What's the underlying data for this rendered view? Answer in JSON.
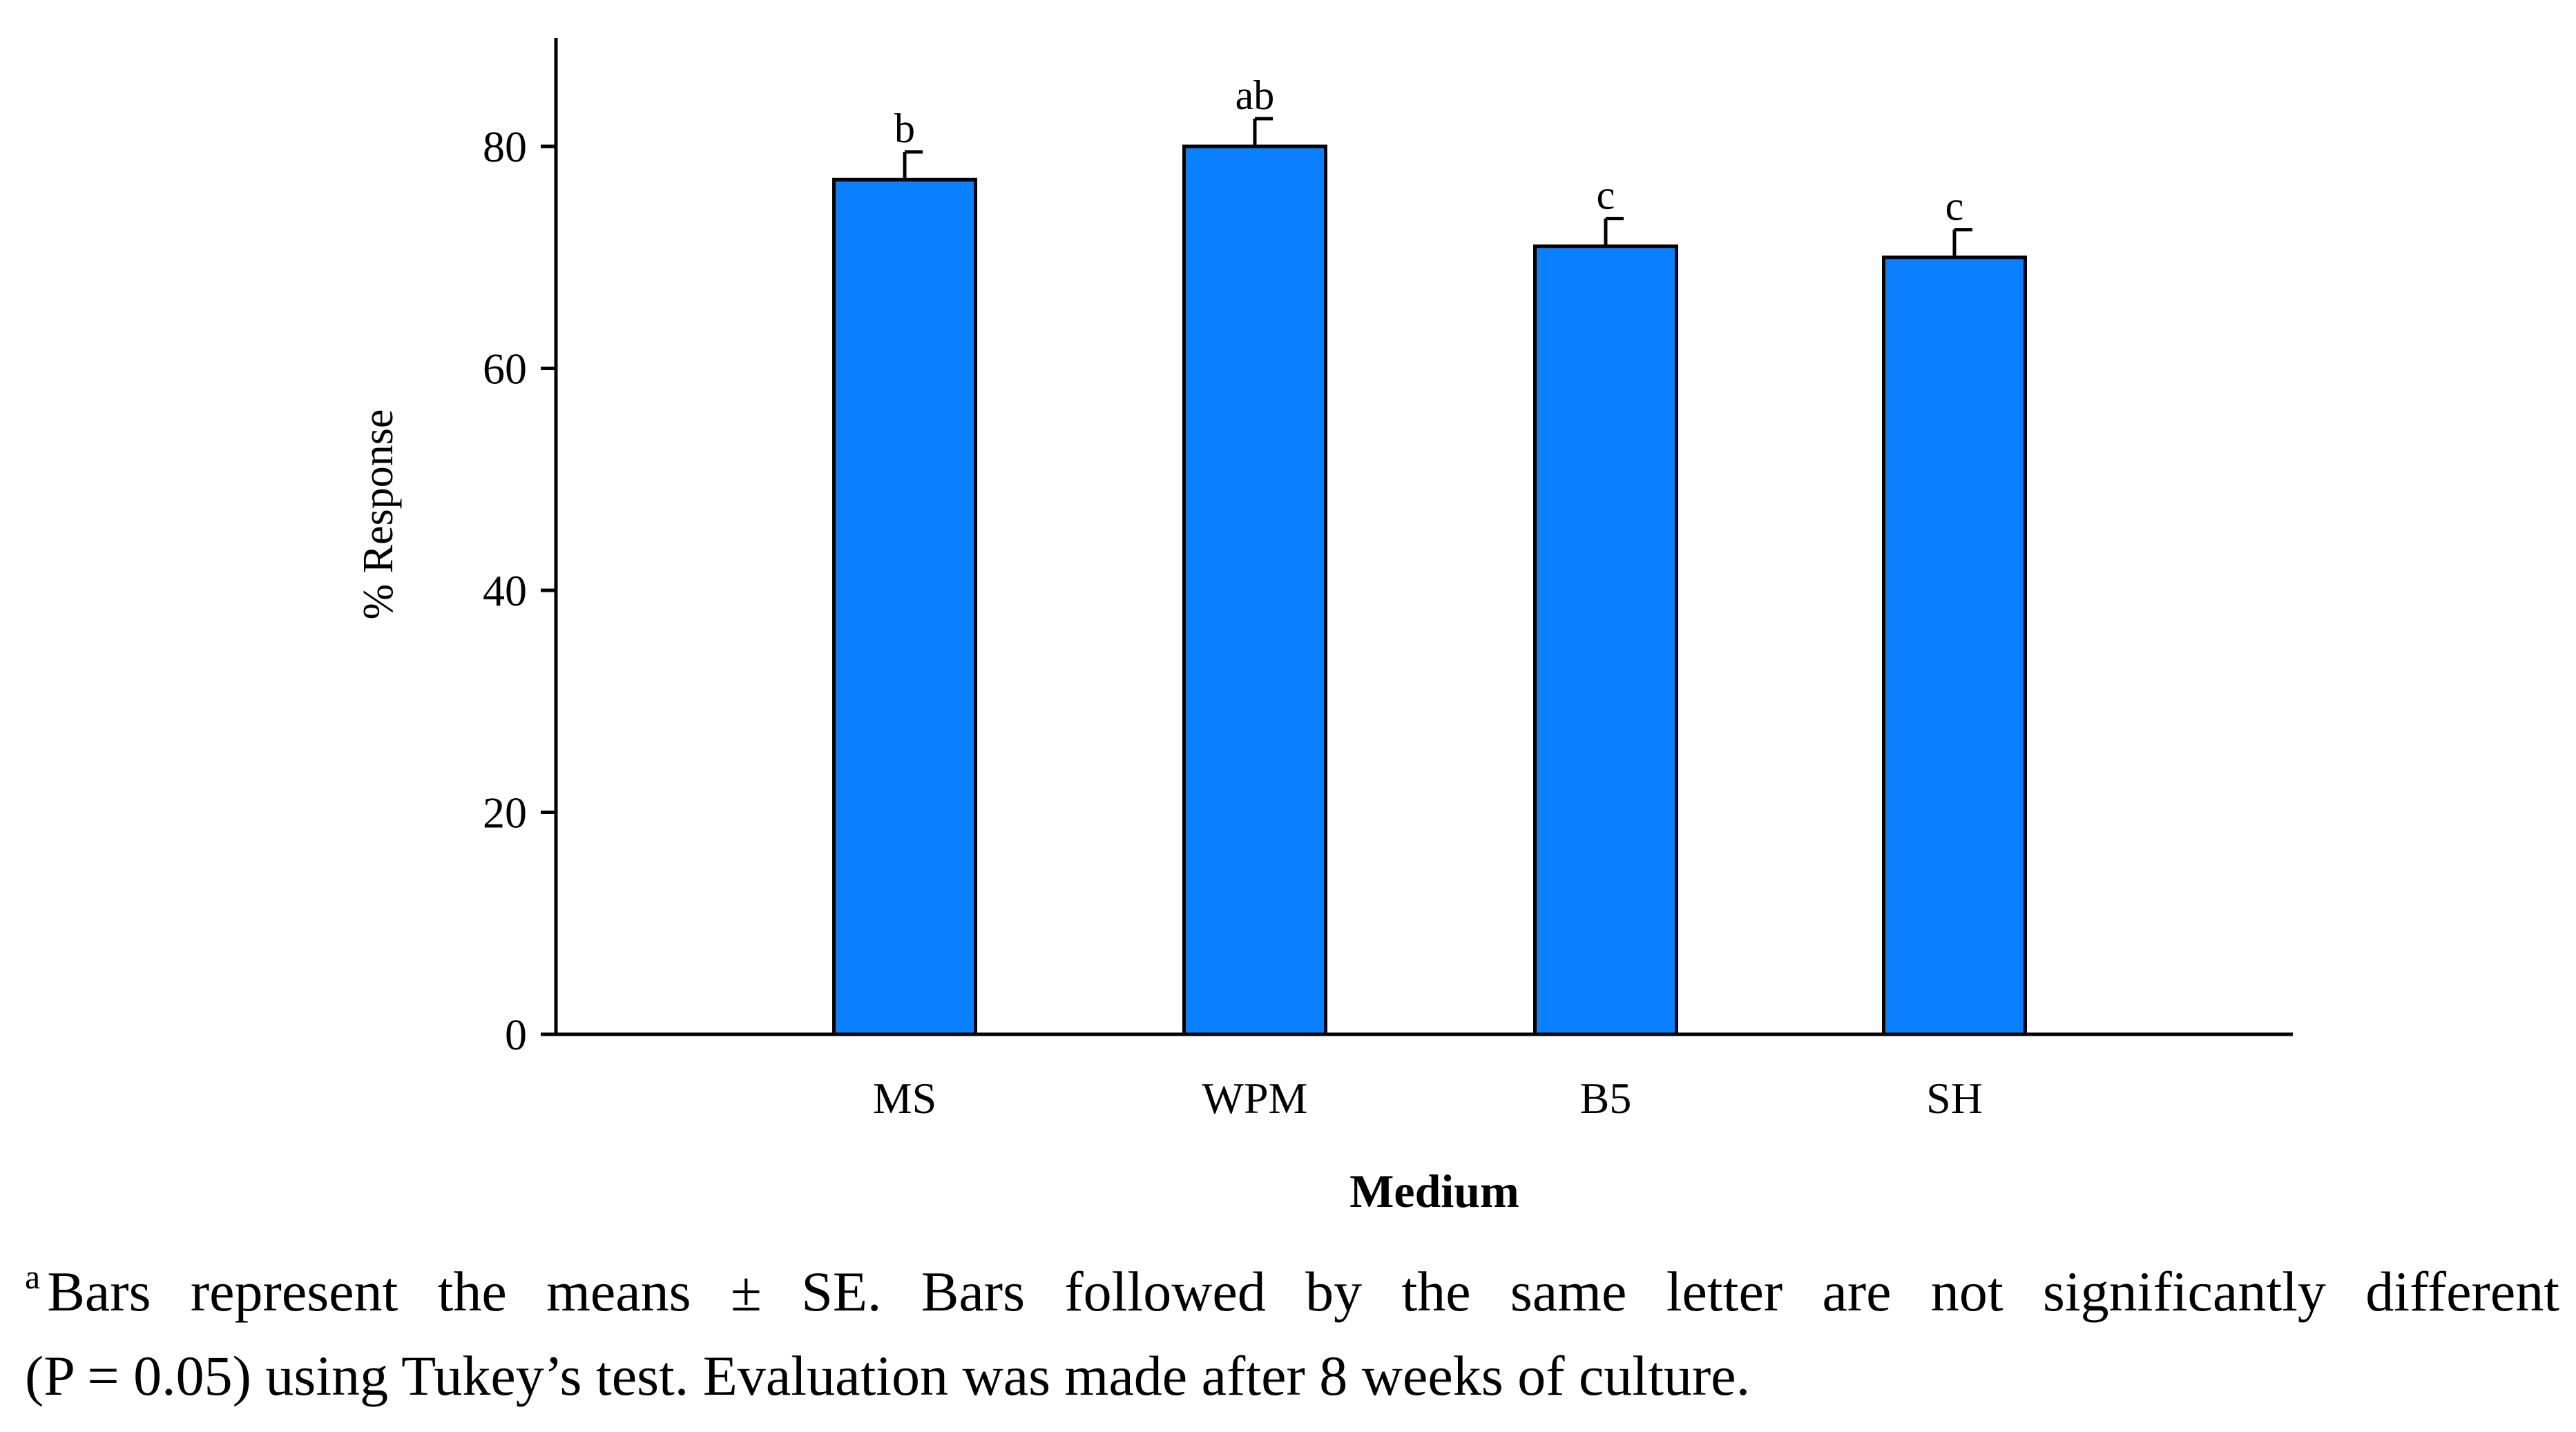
{
  "chart_data": {
    "type": "bar",
    "categories": [
      "MS",
      "WPM",
      "B5",
      "SH"
    ],
    "values": [
      77,
      80,
      71,
      70
    ],
    "errors": [
      2.5,
      2.5,
      2.5,
      2.5
    ],
    "significance_letters": [
      "b",
      "ab",
      "c",
      "c"
    ],
    "xlabel": "Medium",
    "ylabel": "% Response",
    "ylim": [
      0,
      90
    ],
    "yticks": [
      0,
      20,
      40,
      60,
      80
    ],
    "grid": false,
    "bar_color": "#0a7fff",
    "bar_edge_color": "#000000"
  },
  "footnote": {
    "marker": "a",
    "line1": "Bars represent the means ± SE. Bars followed by the same letter are not significantly different",
    "line2": "(P = 0.05) using Tukey’s test. Evaluation was made after 8 weeks of culture."
  }
}
